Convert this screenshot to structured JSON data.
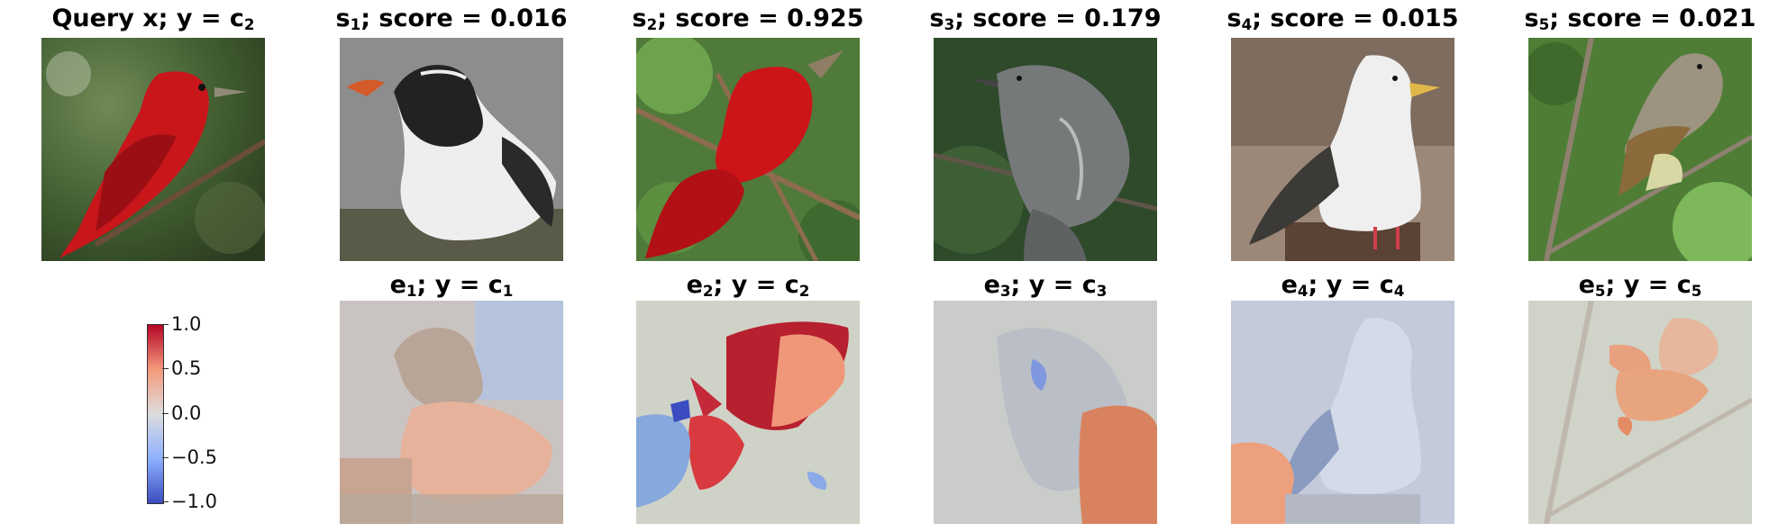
{
  "query": {
    "title_main": "Query x; y = c",
    "title_sub": "2"
  },
  "top_panels": [
    {
      "prefix": "s",
      "sub": "1",
      "suffix": "; score = 0.016"
    },
    {
      "prefix": "s",
      "sub": "2",
      "suffix": "; score = 0.925"
    },
    {
      "prefix": "s",
      "sub": "3",
      "suffix": "; score = 0.179"
    },
    {
      "prefix": "s",
      "sub": "4",
      "suffix": "; score = 0.015"
    },
    {
      "prefix": "s",
      "sub": "5",
      "suffix": "; score = 0.021"
    }
  ],
  "bottom_panels": [
    {
      "prefix": "e",
      "sub": "1",
      "mid": "; y = c",
      "sub2": "1"
    },
    {
      "prefix": "e",
      "sub": "2",
      "mid": "; y = c",
      "sub2": "2"
    },
    {
      "prefix": "e",
      "sub": "3",
      "mid": "; y = c",
      "sub2": "3"
    },
    {
      "prefix": "e",
      "sub": "4",
      "mid": "; y = c",
      "sub2": "4"
    },
    {
      "prefix": "e",
      "sub": "5",
      "mid": "; y = c",
      "sub2": "5"
    }
  ],
  "colorbar": {
    "ticks": [
      "1.0",
      "0.5",
      "0.0",
      "−0.5",
      "−1.0"
    ],
    "colors": {
      "low": "#3b4cc0",
      "mid": "#dddddd",
      "high": "#b40426"
    }
  }
}
